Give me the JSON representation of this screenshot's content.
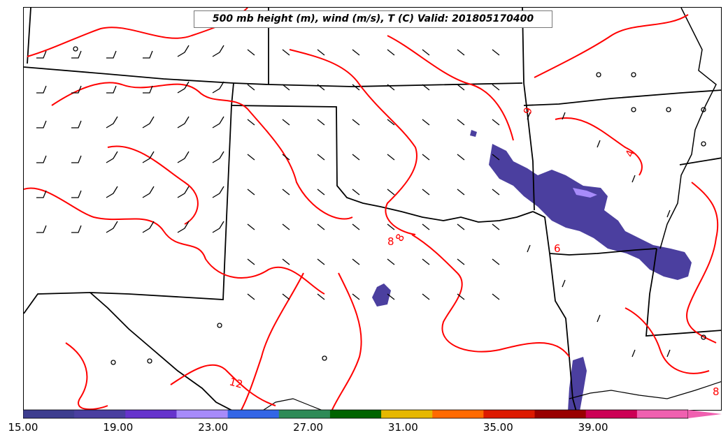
{
  "title": "500 mb height (m), wind (m/s), T (C) Valid: 201805170400",
  "contour_labels": [
    "9",
    "8",
    "8",
    "6",
    "4",
    "12",
    "8"
  ],
  "colorbar": {
    "tick_labels": [
      "15.00",
      "19.00",
      "23.00",
      "27.00",
      "31.00",
      "35.00",
      "39.00"
    ],
    "range": [
      15,
      43
    ],
    "colors": [
      "#3d3d8f",
      "#4a3fa0",
      "#6633cc",
      "#a78bfa",
      "#3366e6",
      "#2e8b57",
      "#006400",
      "#e6b800",
      "#ff6a00",
      "#dd1a00",
      "#990000",
      "#cc0055",
      "#f060b0"
    ]
  },
  "colors": {
    "temperature_contour": "#ff0000",
    "precip_fill": "#4b3f9f",
    "boundaries": "#000000"
  }
}
